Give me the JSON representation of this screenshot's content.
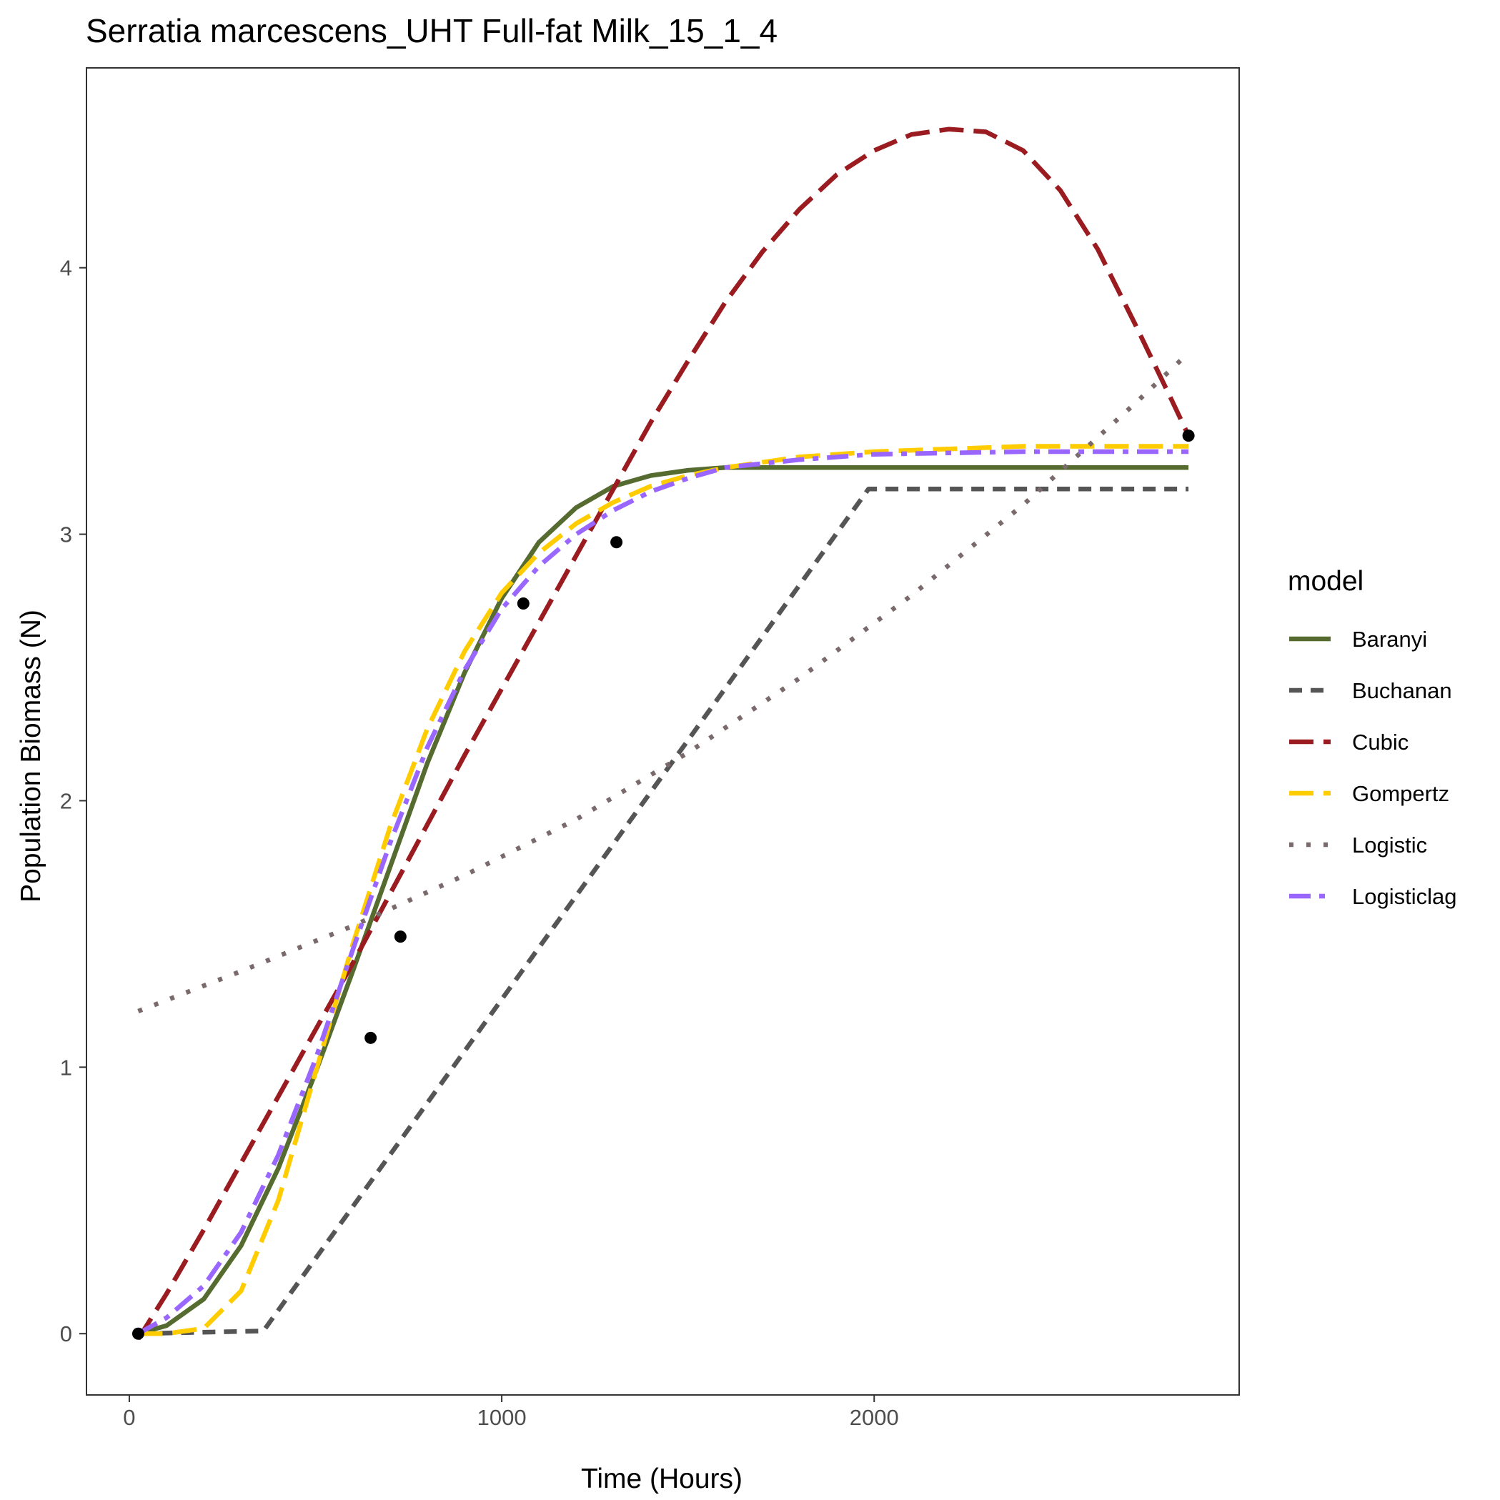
{
  "chart_data": {
    "type": "line",
    "title": "Serratia marcescens_UHT Full-fat Milk_15_1_4",
    "xlabel": "Time (Hours)",
    "ylabel": "Population Biomass (N)",
    "xlim": [
      -115,
      2980
    ],
    "ylim": [
      -0.23,
      4.75
    ],
    "x_ticks": [
      0,
      1000,
      2000
    ],
    "x_tick_labels": [
      "0",
      "1000",
      "2000"
    ],
    "y_ticks": [
      0,
      1,
      2,
      3,
      4
    ],
    "y_tick_labels": [
      "0",
      "1",
      "2",
      "3",
      "4"
    ],
    "grid": false,
    "legend": {
      "title": "model",
      "position": "right"
    },
    "points": {
      "x": [
        24,
        648,
        728,
        1058,
        1308,
        2844
      ],
      "y": [
        0.0,
        1.11,
        1.49,
        2.74,
        2.97,
        3.37
      ]
    },
    "series": [
      {
        "name": "Baranyi",
        "color": "#556B2F",
        "dash": "solid",
        "x": [
          24,
          100,
          200,
          300,
          400,
          500,
          600,
          700,
          800,
          900,
          1000,
          1100,
          1200,
          1300,
          1400,
          1500,
          1600,
          1800,
          2000,
          2400,
          2844
        ],
        "y": [
          0.0,
          0.03,
          0.13,
          0.33,
          0.62,
          0.98,
          1.36,
          1.75,
          2.14,
          2.48,
          2.76,
          2.97,
          3.1,
          3.18,
          3.22,
          3.24,
          3.25,
          3.25,
          3.25,
          3.25,
          3.25
        ]
      },
      {
        "name": "Buchanan",
        "color": "#555555",
        "dash": "dashed-short",
        "x": [
          24,
          360,
          1985,
          2844
        ],
        "y": [
          0.0,
          0.01,
          3.17,
          3.17
        ]
      },
      {
        "name": "Cubic",
        "color": "#9B1C20",
        "dash": "dashed-long",
        "x": [
          24,
          100,
          200,
          300,
          400,
          500,
          600,
          700,
          800,
          900,
          1000,
          1100,
          1200,
          1300,
          1400,
          1500,
          1600,
          1700,
          1800,
          1900,
          2000,
          2100,
          2200,
          2300,
          2400,
          2500,
          2600,
          2700,
          2800,
          2844
        ],
        "y": [
          -0.02,
          0.15,
          0.39,
          0.64,
          0.89,
          1.14,
          1.39,
          1.65,
          1.91,
          2.17,
          2.42,
          2.67,
          2.92,
          3.17,
          3.42,
          3.65,
          3.87,
          4.06,
          4.22,
          4.35,
          4.44,
          4.5,
          4.52,
          4.51,
          4.44,
          4.29,
          4.07,
          3.79,
          3.5,
          3.37
        ]
      },
      {
        "name": "Gompertz",
        "color": "#FFCC00",
        "dash": "dashed-long",
        "x": [
          24,
          100,
          200,
          300,
          400,
          500,
          600,
          700,
          800,
          900,
          1000,
          1100,
          1200,
          1300,
          1400,
          1500,
          1600,
          1800,
          2000,
          2400,
          2844
        ],
        "y": [
          0.0,
          0.0,
          0.02,
          0.16,
          0.5,
          0.98,
          1.46,
          1.9,
          2.27,
          2.56,
          2.78,
          2.93,
          3.04,
          3.12,
          3.18,
          3.22,
          3.25,
          3.29,
          3.31,
          3.33,
          3.33
        ]
      },
      {
        "name": "Logistic",
        "color": "#7A6A6C",
        "dash": "dotted",
        "x": [
          24,
          300,
          600,
          900,
          1200,
          1500,
          1800,
          2100,
          2400,
          2700,
          2844
        ],
        "y": [
          1.21,
          1.36,
          1.53,
          1.72,
          1.93,
          2.18,
          2.46,
          2.77,
          3.11,
          3.49,
          3.68
        ]
      },
      {
        "name": "Logisticlag",
        "color": "#9966FF",
        "dash": "dashdot",
        "x": [
          24,
          100,
          200,
          300,
          400,
          500,
          600,
          700,
          800,
          900,
          1000,
          1100,
          1200,
          1300,
          1400,
          1500,
          1600,
          1800,
          2000,
          2400,
          2844
        ],
        "y": [
          0.0,
          0.06,
          0.18,
          0.38,
          0.67,
          1.03,
          1.44,
          1.84,
          2.2,
          2.49,
          2.72,
          2.88,
          3.0,
          3.09,
          3.16,
          3.21,
          3.25,
          3.28,
          3.3,
          3.31,
          3.31
        ]
      }
    ]
  }
}
